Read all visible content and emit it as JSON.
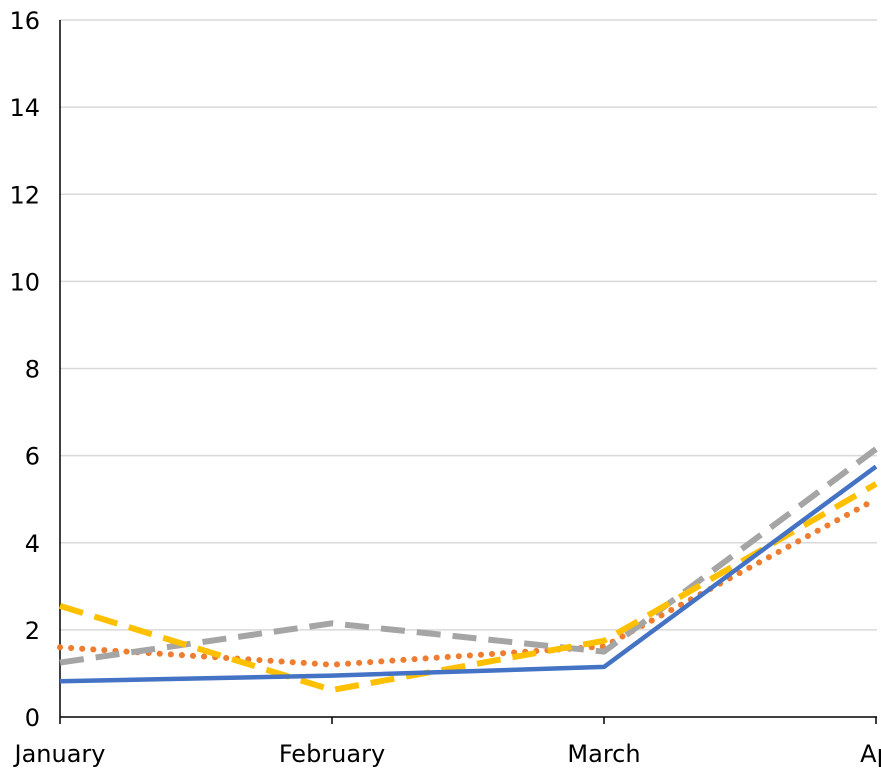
{
  "chart_data": {
    "type": "line",
    "title": "",
    "xlabel": "",
    "ylabel": "",
    "categories": [
      "January",
      "February",
      "March",
      "Ap"
    ],
    "ylim": [
      0,
      16
    ],
    "yticks": [
      0,
      2,
      4,
      6,
      8,
      10,
      12,
      14,
      16
    ],
    "grid": true,
    "legend": "none",
    "series": [
      {
        "values": [
          0.82,
          0.95,
          1.15,
          5.75
        ],
        "color": "#4472C4",
        "style": "solid"
      },
      {
        "values": [
          1.6,
          1.2,
          1.62,
          5.0
        ],
        "color": "#ED7D31",
        "style": "dotted"
      },
      {
        "values": [
          1.25,
          2.15,
          1.5,
          6.15
        ],
        "color": "#A5A5A5",
        "style": "dashed"
      },
      {
        "values": [
          2.55,
          0.62,
          1.75,
          5.35
        ],
        "color": "#FFC000",
        "style": "dashed"
      }
    ]
  }
}
